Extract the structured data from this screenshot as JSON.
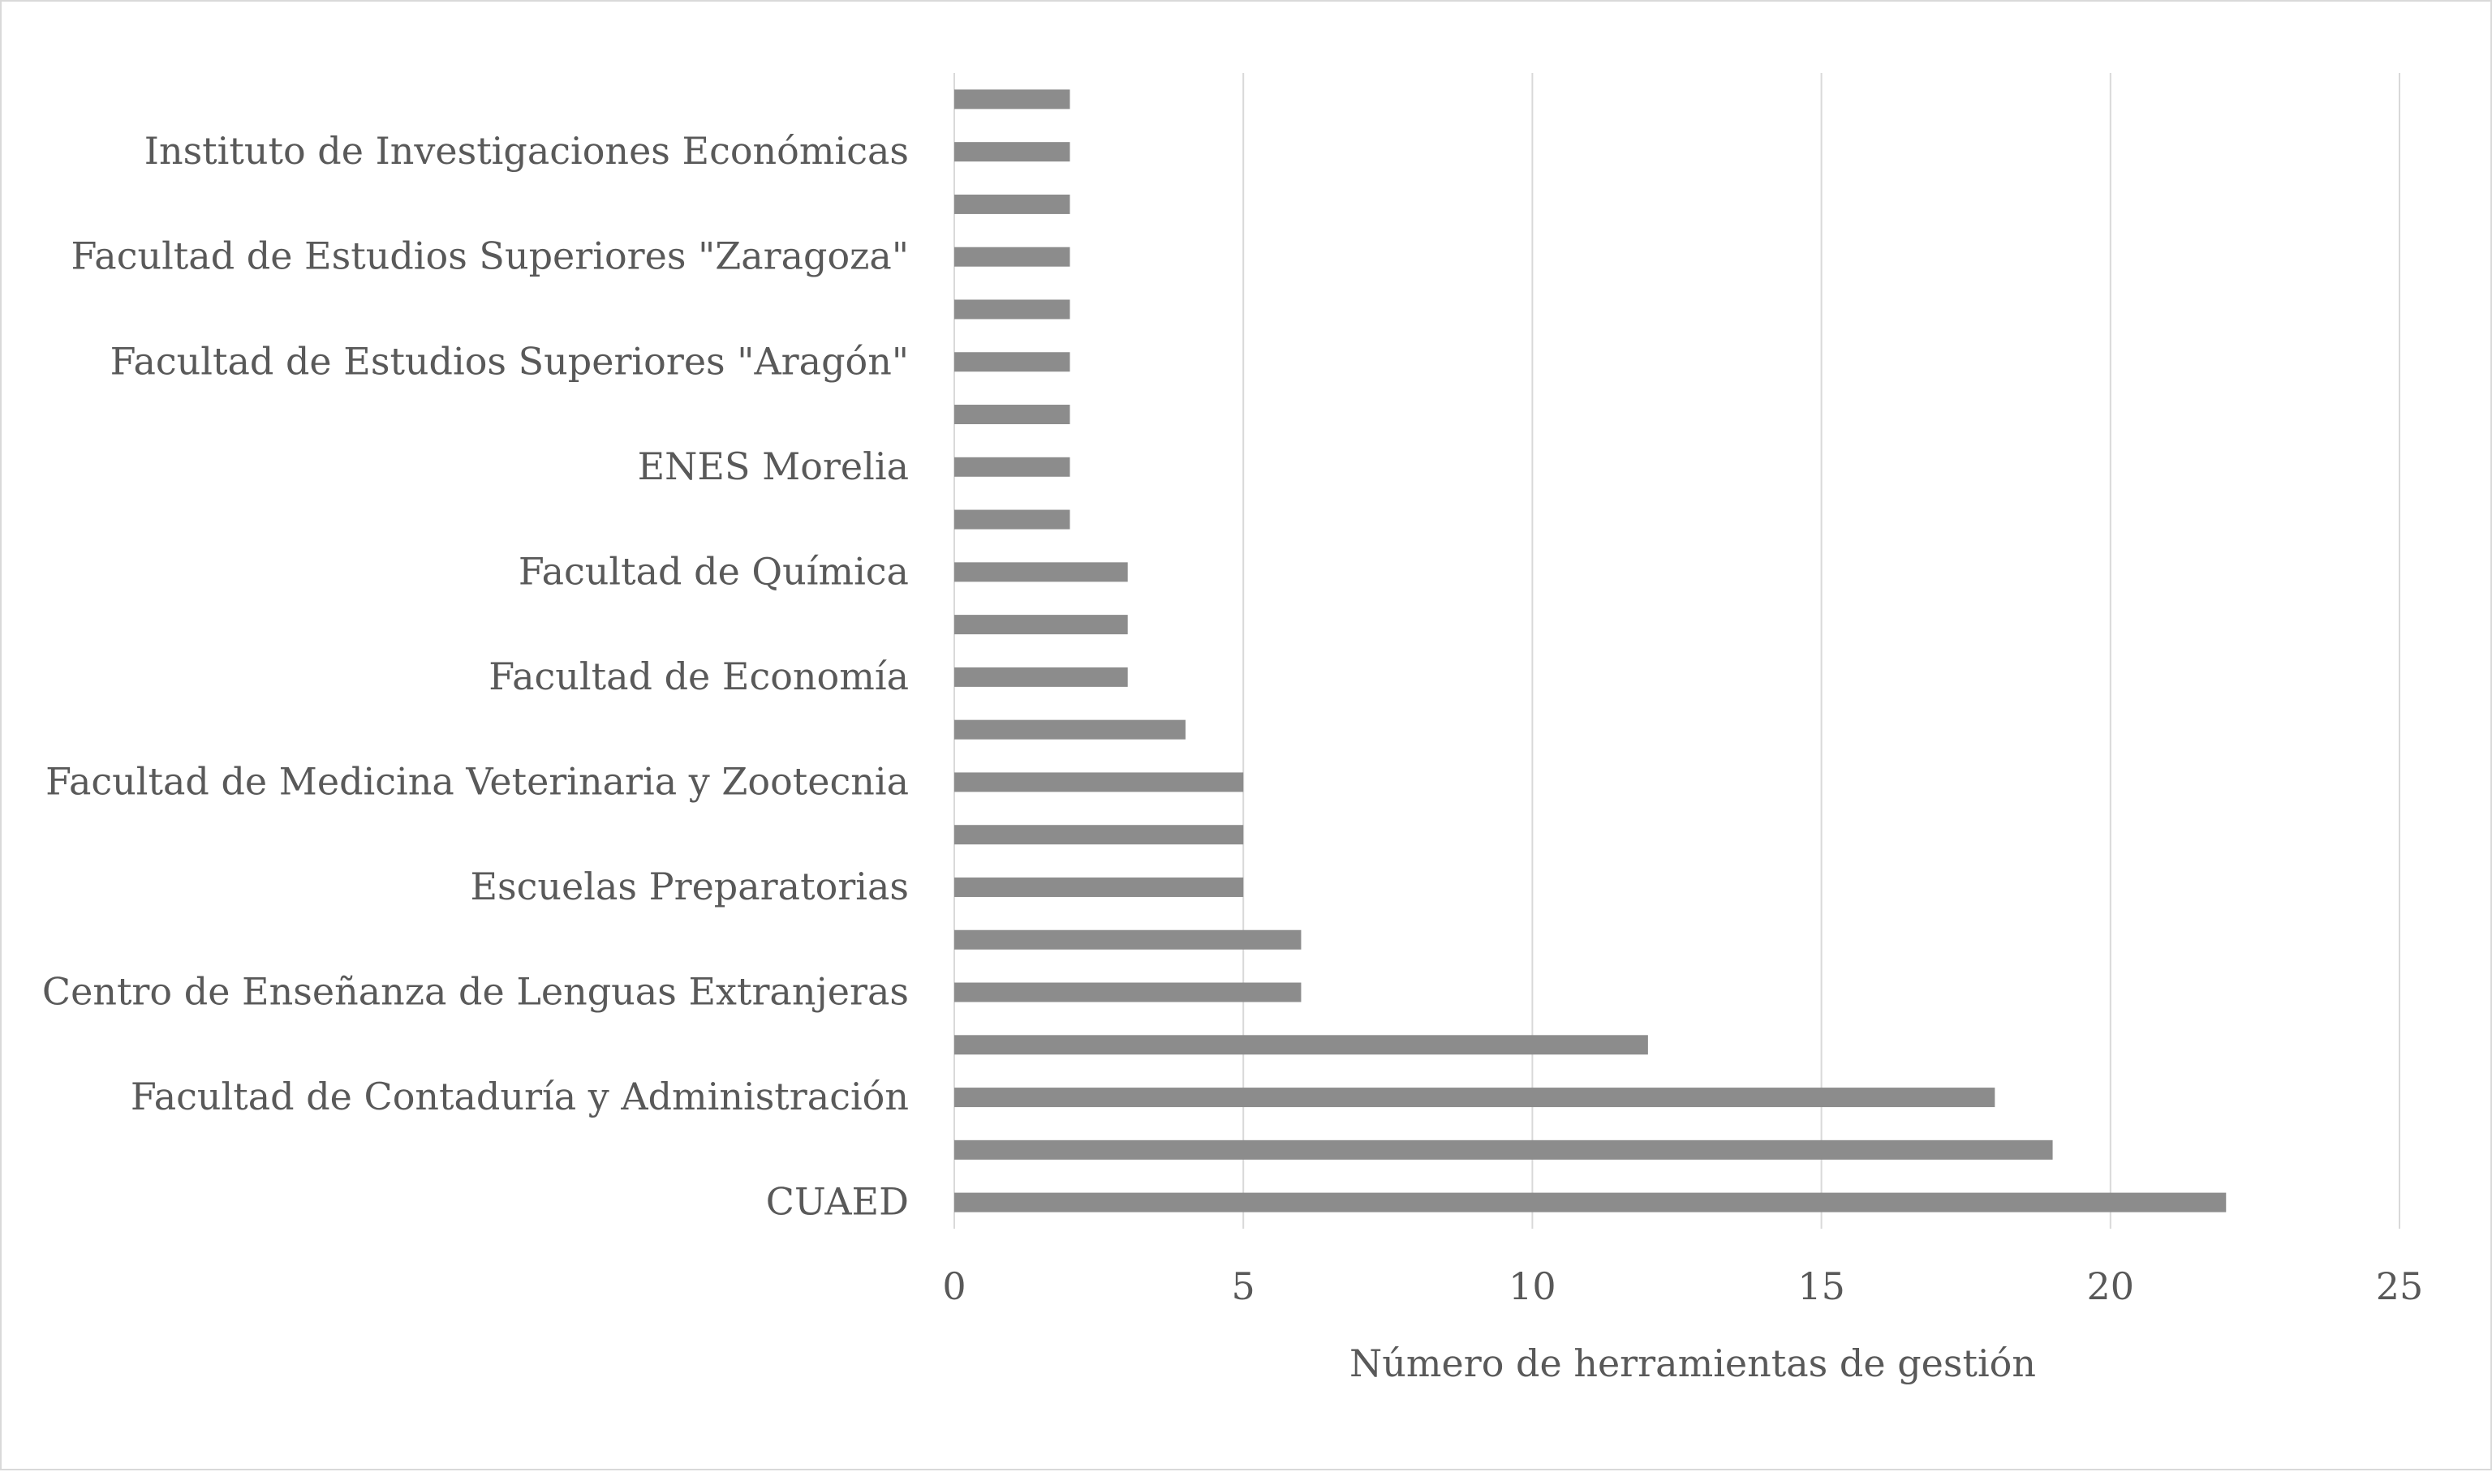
{
  "chart_data": {
    "type": "bar",
    "orientation": "horizontal",
    "categories": [
      "CUAED",
      "",
      "Facultad de Contaduría y Administración",
      "",
      "Centro de Enseñanza de Lenguas Extranjeras",
      "",
      "Escuelas Preparatorias",
      "",
      "Facultad de Medicina Veterinaria y Zootecnia",
      "",
      "Facultad de Economía",
      "",
      "Facultad de Química",
      "",
      "ENES Morelia",
      "",
      "Facultad de Estudios Superiores \"Aragón\"",
      "",
      "Facultad de Estudios Superiores \"Zaragoza\"",
      "",
      "Instituto de Investigaciones Económicas",
      ""
    ],
    "values": [
      22,
      19,
      18,
      12,
      6,
      6,
      5,
      5,
      5,
      4,
      3,
      3,
      3,
      2,
      2,
      2,
      2,
      2,
      2,
      2,
      2,
      2
    ],
    "xlabel": "Número de herramientas de gestión",
    "ylabel": "",
    "xlim": [
      0,
      25
    ],
    "xticks": [
      0,
      5,
      10,
      15,
      20,
      25
    ],
    "grid": "vertical",
    "legend": "none",
    "colors": {
      "bar": "#8c8c8c",
      "grid": "#d9d9d9",
      "text": "#595959"
    }
  }
}
